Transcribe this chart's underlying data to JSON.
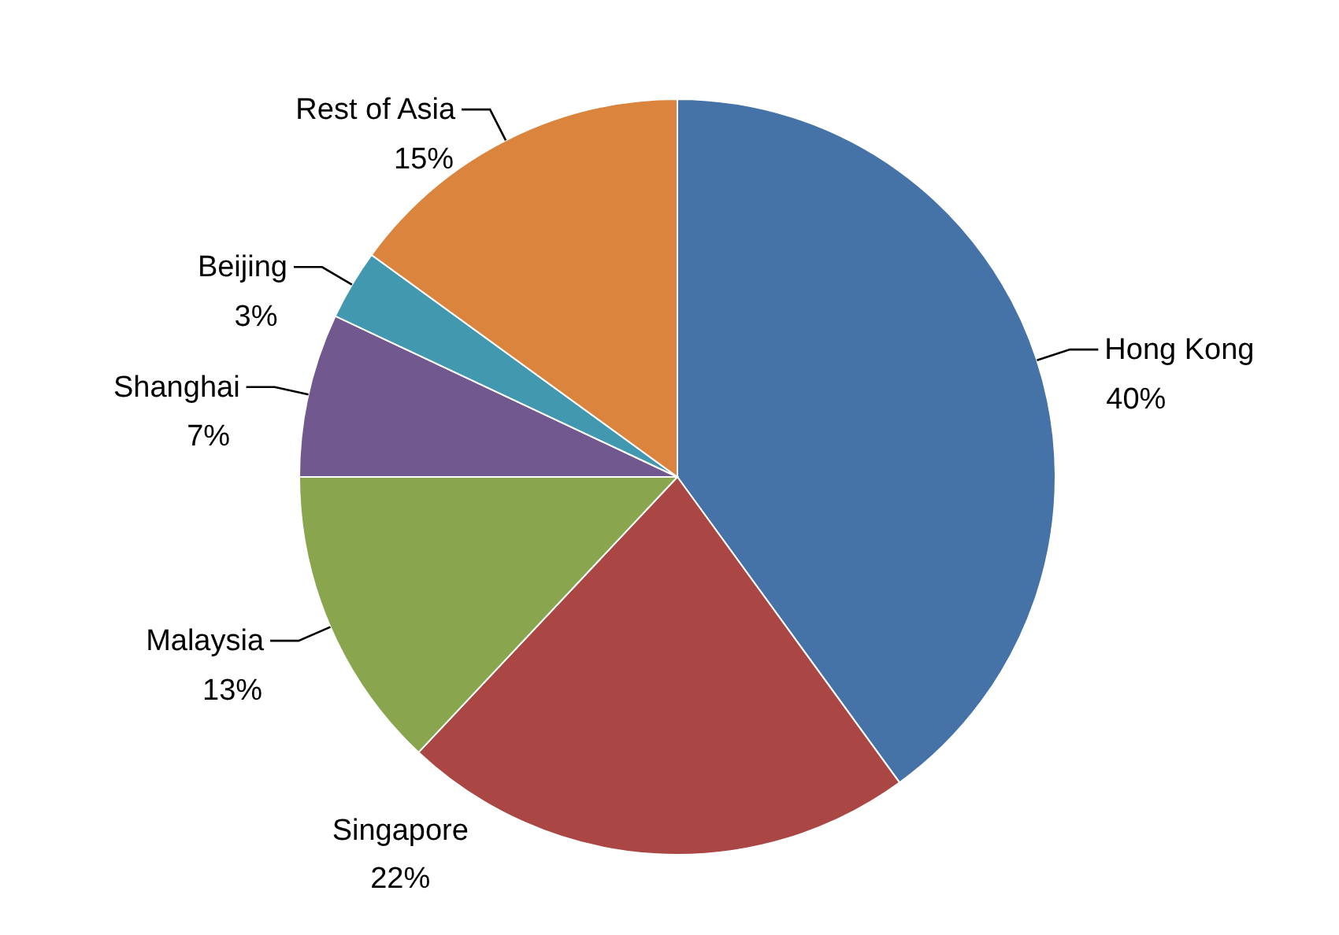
{
  "chart_data": {
    "type": "pie",
    "categories": [
      "Hong Kong",
      "Singapore",
      "Malaysia",
      "Shanghai",
      "Beijing",
      "Rest of Asia"
    ],
    "values": [
      40,
      22,
      13,
      7,
      3,
      15
    ],
    "colors": [
      "#4572a7",
      "#aa4643",
      "#89a54e",
      "#71588f",
      "#4198af",
      "#db843d"
    ],
    "value_labels": [
      "40%",
      "22%",
      "13%",
      "7%",
      "3%",
      "15%"
    ],
    "legend": false
  }
}
